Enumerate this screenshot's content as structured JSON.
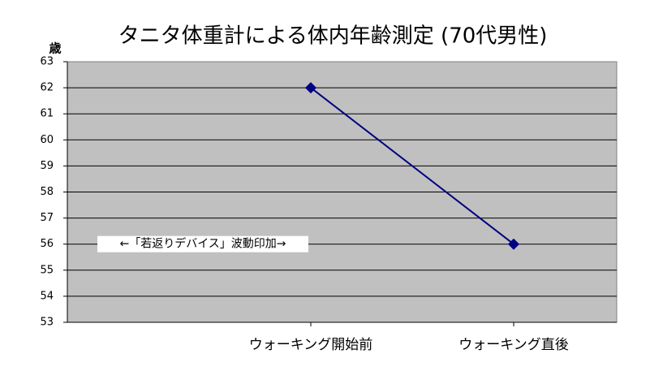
{
  "chart_data": {
    "type": "line",
    "title": "タニタ体重計による体内年齢測定 (70代男性)",
    "y_label": "歳",
    "annotation": "←「若返りデバイス」波動印加→",
    "categories": [
      null,
      "ウォーキング開始前",
      "ウォーキング直後"
    ],
    "values": [
      null,
      62,
      56
    ],
    "color": "#000080",
    "ylim": [
      53,
      63
    ],
    "yticks": [
      53,
      54,
      55,
      56,
      57,
      58,
      59,
      60,
      61,
      62,
      63
    ],
    "grid": true
  }
}
